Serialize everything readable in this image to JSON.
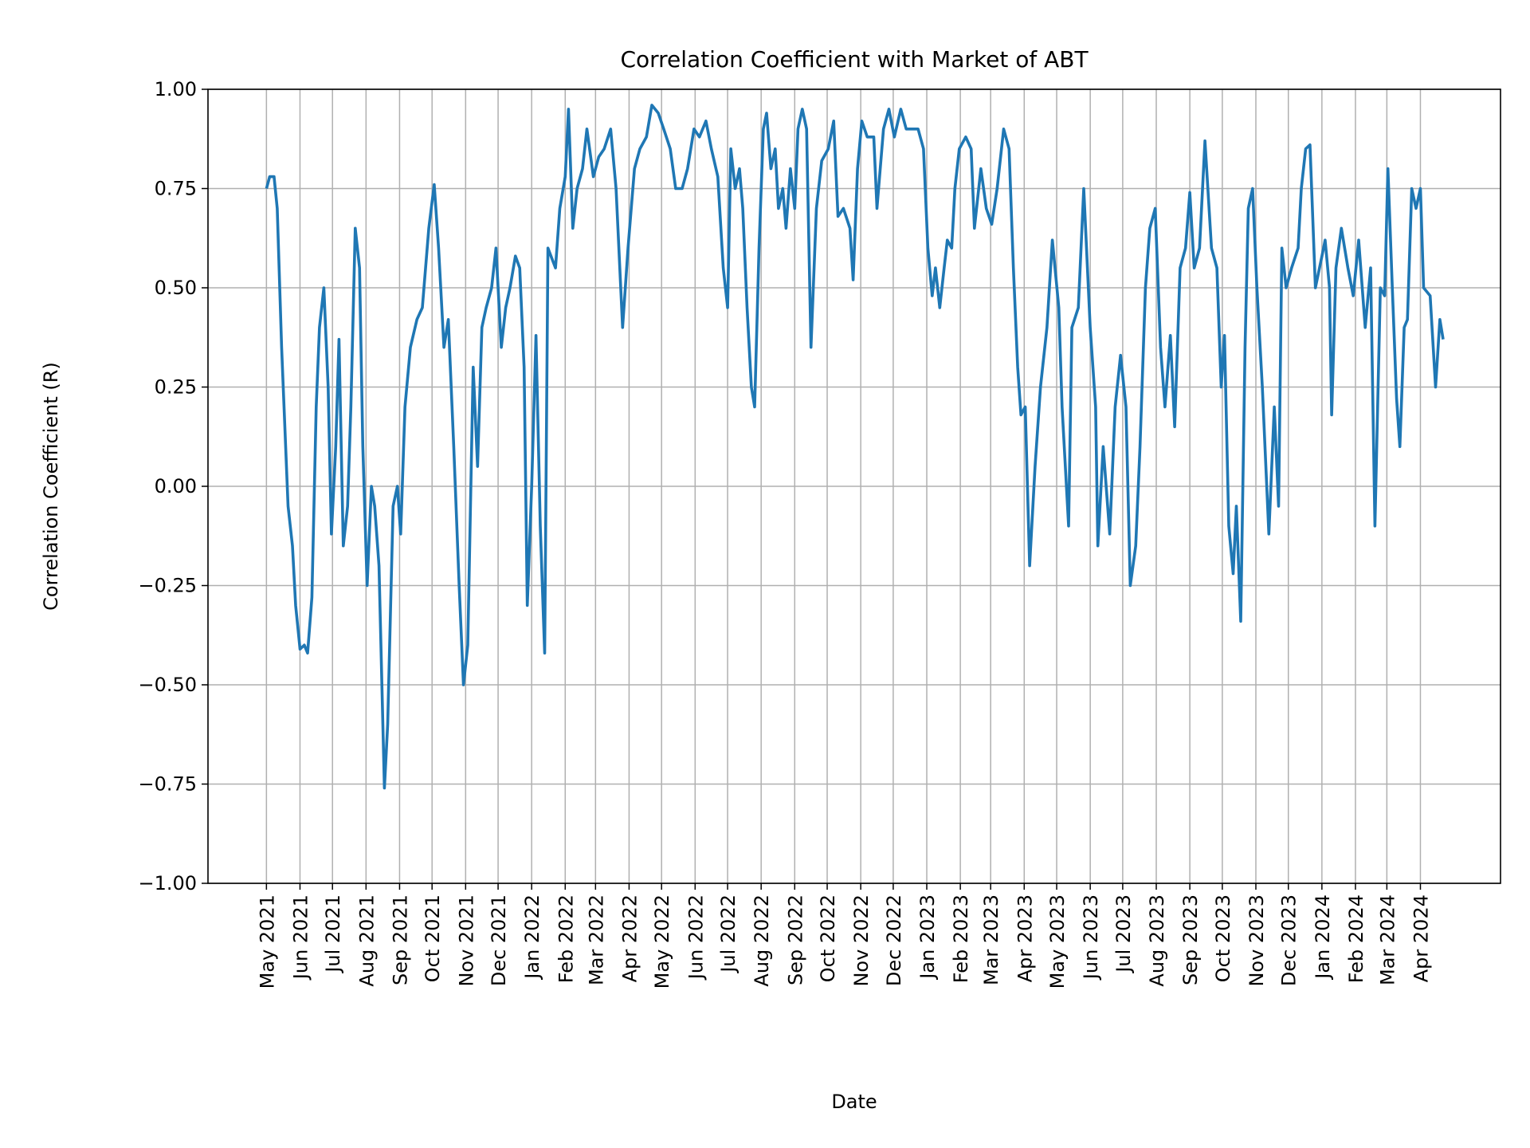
{
  "chart_data": {
    "type": "line",
    "title": "Correlation Coefficient with Market of ABT",
    "xlabel": "Date",
    "ylabel": "Correlation Coefficient (R)",
    "ylim": [
      -1.0,
      1.0
    ],
    "xlim": [
      "2021-03-08",
      "2024-06-14"
    ],
    "grid": true,
    "line_color": "#1f77b4",
    "grid_color": "#b0b0b0",
    "yticks": [
      -1.0,
      -0.75,
      -0.5,
      -0.25,
      0.0,
      0.25,
      0.5,
      0.75,
      1.0
    ],
    "ytick_labels": [
      "−1.00",
      "−0.75",
      "−0.50",
      "−0.25",
      "0.00",
      "0.25",
      "0.50",
      "0.75",
      "1.00"
    ],
    "xtick_labels": [
      "May 2021",
      "Jun 2021",
      "Jul 2021",
      "Aug 2021",
      "Sep 2021",
      "Oct 2021",
      "Nov 2021",
      "Dec 2021",
      "Jan 2022",
      "Feb 2022",
      "Mar 2022",
      "Apr 2022",
      "May 2022",
      "Jun 2022",
      "Jul 2022",
      "Aug 2022",
      "Sep 2022",
      "Oct 2022",
      "Nov 2022",
      "Dec 2022",
      "Jan 2023",
      "Feb 2023",
      "Mar 2023",
      "Apr 2023",
      "May 2023",
      "Jun 2023",
      "Jul 2023",
      "Aug 2023",
      "Sep 2023",
      "Oct 2023",
      "Nov 2023",
      "Dec 2023",
      "Jan 2024",
      "Feb 2024",
      "Mar 2024",
      "Apr 2024"
    ],
    "series": [
      {
        "x": [
          "2021-05-01",
          "2021-05-04",
          "2021-05-08",
          "2021-05-11",
          "2021-05-15",
          "2021-05-21",
          "2021-05-25",
          "2021-05-28",
          "2021-06-01",
          "2021-06-05",
          "2021-06-08",
          "2021-06-12",
          "2021-06-16",
          "2021-06-19",
          "2021-06-23",
          "2021-06-27",
          "2021-06-30",
          "2021-07-04",
          "2021-07-07",
          "2021-07-11",
          "2021-07-15",
          "2021-07-18",
          "2021-07-22",
          "2021-07-26",
          "2021-07-29",
          "2021-08-02",
          "2021-08-06",
          "2021-08-09",
          "2021-08-13",
          "2021-08-18",
          "2021-08-21",
          "2021-08-26",
          "2021-08-30",
          "2021-09-02",
          "2021-09-06",
          "2021-09-11",
          "2021-09-17",
          "2021-09-22",
          "2021-09-28",
          "2021-10-03",
          "2021-10-07",
          "2021-10-12",
          "2021-10-16",
          "2021-10-21",
          "2021-10-26",
          "2021-10-30",
          "2021-11-03",
          "2021-11-08",
          "2021-11-12",
          "2021-11-16",
          "2021-11-20",
          "2021-11-25",
          "2021-11-29",
          "2021-12-04",
          "2021-12-08",
          "2021-12-12",
          "2021-12-17",
          "2021-12-21",
          "2021-12-25",
          "2021-12-28",
          "2022-01-01",
          "2022-01-05",
          "2022-01-09",
          "2022-01-13",
          "2022-01-16",
          "2022-01-23",
          "2022-01-27",
          "2022-02-01",
          "2022-02-04",
          "2022-02-08",
          "2022-02-12",
          "2022-02-17",
          "2022-02-21",
          "2022-02-27",
          "2022-03-04",
          "2022-03-09",
          "2022-03-15",
          "2022-03-20",
          "2022-03-26",
          "2022-03-31",
          "2022-04-06",
          "2022-04-11",
          "2022-04-17",
          "2022-04-22",
          "2022-04-28",
          "2022-05-03",
          "2022-05-09",
          "2022-05-14",
          "2022-05-20",
          "2022-05-25",
          "2022-05-31",
          "2022-06-05",
          "2022-06-11",
          "2022-06-16",
          "2022-06-22",
          "2022-06-27",
          "2022-07-01",
          "2022-07-04",
          "2022-07-08",
          "2022-07-12",
          "2022-07-15",
          "2022-07-19",
          "2022-07-23",
          "2022-07-26",
          "2022-07-30",
          "2022-08-03",
          "2022-08-06",
          "2022-08-10",
          "2022-08-14",
          "2022-08-17",
          "2022-08-21",
          "2022-08-24",
          "2022-08-28",
          "2022-09-01",
          "2022-09-04",
          "2022-09-08",
          "2022-09-12",
          "2022-09-16",
          "2022-09-21",
          "2022-09-26",
          "2022-10-02",
          "2022-10-07",
          "2022-10-11",
          "2022-10-16",
          "2022-10-22",
          "2022-10-25",
          "2022-10-29",
          "2022-11-02",
          "2022-11-07",
          "2022-11-13",
          "2022-11-16",
          "2022-11-22",
          "2022-11-27",
          "2022-12-02",
          "2022-12-08",
          "2022-12-13",
          "2022-12-19",
          "2022-12-24",
          "2022-12-29",
          "2023-01-02",
          "2023-01-06",
          "2023-01-09",
          "2023-01-13",
          "2023-01-17",
          "2023-01-20",
          "2023-01-24",
          "2023-01-27",
          "2023-01-31",
          "2023-02-06",
          "2023-02-11",
          "2023-02-14",
          "2023-02-20",
          "2023-02-25",
          "2023-03-02",
          "2023-03-07",
          "2023-03-13",
          "2023-03-18",
          "2023-03-22",
          "2023-03-26",
          "2023-03-29",
          "2023-04-02",
          "2023-04-06",
          "2023-04-11",
          "2023-04-16",
          "2023-04-22",
          "2023-04-27",
          "2023-05-03",
          "2023-05-06",
          "2023-05-12",
          "2023-05-15",
          "2023-05-21",
          "2023-05-26",
          "2023-06-01",
          "2023-06-06",
          "2023-06-08",
          "2023-06-13",
          "2023-06-19",
          "2023-06-24",
          "2023-06-29",
          "2023-07-04",
          "2023-07-08",
          "2023-07-13",
          "2023-07-17",
          "2023-07-22",
          "2023-07-26",
          "2023-07-31",
          "2023-08-05",
          "2023-08-09",
          "2023-08-14",
          "2023-08-18",
          "2023-08-23",
          "2023-08-28",
          "2023-09-01",
          "2023-09-05",
          "2023-09-10",
          "2023-09-15",
          "2023-09-21",
          "2023-09-26",
          "2023-09-30",
          "2023-10-03",
          "2023-10-07",
          "2023-10-11",
          "2023-10-14",
          "2023-10-18",
          "2023-10-22",
          "2023-10-25",
          "2023-10-29",
          "2023-11-02",
          "2023-11-07",
          "2023-11-13",
          "2023-11-18",
          "2023-11-22",
          "2023-11-25",
          "2023-11-29",
          "2023-12-04",
          "2023-12-10",
          "2023-12-13",
          "2023-12-17",
          "2023-12-21",
          "2023-12-26",
          "2024-01-01",
          "2024-01-04",
          "2024-01-08",
          "2024-01-10",
          "2024-01-14",
          "2024-01-19",
          "2024-01-25",
          "2024-01-30",
          "2024-02-04",
          "2024-02-10",
          "2024-02-15",
          "2024-02-19",
          "2024-02-24",
          "2024-02-28",
          "2024-03-02",
          "2024-03-06",
          "2024-03-10",
          "2024-03-13",
          "2024-03-17",
          "2024-03-20",
          "2024-03-24",
          "2024-03-28",
          "2024-04-01",
          "2024-04-04",
          "2024-04-10",
          "2024-04-15",
          "2024-04-19",
          "2024-04-22"
        ],
        "y": [
          0.75,
          0.78,
          0.78,
          0.7,
          0.35,
          -0.05,
          -0.15,
          -0.3,
          -0.41,
          -0.4,
          -0.42,
          -0.28,
          0.2,
          0.4,
          0.5,
          0.25,
          -0.12,
          0.1,
          0.37,
          -0.15,
          -0.05,
          0.2,
          0.65,
          0.55,
          0.1,
          -0.25,
          0.0,
          -0.05,
          -0.2,
          -0.76,
          -0.6,
          -0.05,
          0.0,
          -0.12,
          0.2,
          0.35,
          0.42,
          0.45,
          0.65,
          0.76,
          0.6,
          0.35,
          0.42,
          0.1,
          -0.25,
          -0.5,
          -0.4,
          0.3,
          0.05,
          0.4,
          0.45,
          0.5,
          0.6,
          0.35,
          0.45,
          0.5,
          0.58,
          0.55,
          0.3,
          -0.3,
          0.0,
          0.38,
          -0.1,
          -0.42,
          0.6,
          0.55,
          0.7,
          0.78,
          0.95,
          0.65,
          0.75,
          0.8,
          0.9,
          0.78,
          0.83,
          0.85,
          0.9,
          0.75,
          0.4,
          0.6,
          0.8,
          0.85,
          0.88,
          0.96,
          0.94,
          0.9,
          0.85,
          0.75,
          0.75,
          0.8,
          0.9,
          0.88,
          0.92,
          0.85,
          0.78,
          0.55,
          0.45,
          0.85,
          0.75,
          0.8,
          0.7,
          0.45,
          0.25,
          0.2,
          0.6,
          0.9,
          0.94,
          0.8,
          0.85,
          0.7,
          0.75,
          0.65,
          0.8,
          0.7,
          0.9,
          0.95,
          0.9,
          0.35,
          0.7,
          0.82,
          0.85,
          0.92,
          0.68,
          0.7,
          0.65,
          0.52,
          0.8,
          0.92,
          0.88,
          0.88,
          0.7,
          0.9,
          0.95,
          0.88,
          0.95,
          0.9,
          0.9,
          0.9,
          0.85,
          0.6,
          0.48,
          0.55,
          0.45,
          0.55,
          0.62,
          0.6,
          0.75,
          0.85,
          0.88,
          0.85,
          0.65,
          0.8,
          0.7,
          0.66,
          0.75,
          0.9,
          0.85,
          0.55,
          0.3,
          0.18,
          0.2,
          -0.2,
          0.05,
          0.25,
          0.4,
          0.62,
          0.45,
          0.2,
          -0.1,
          0.4,
          0.45,
          0.75,
          0.4,
          0.2,
          -0.15,
          0.1,
          -0.12,
          0.2,
          0.33,
          0.2,
          -0.25,
          -0.15,
          0.1,
          0.5,
          0.65,
          0.7,
          0.35,
          0.2,
          0.38,
          0.15,
          0.55,
          0.6,
          0.74,
          0.55,
          0.6,
          0.87,
          0.6,
          0.55,
          0.25,
          0.38,
          -0.1,
          -0.22,
          -0.05,
          -0.34,
          0.35,
          0.7,
          0.75,
          0.5,
          0.25,
          -0.12,
          0.2,
          -0.05,
          0.6,
          0.5,
          0.55,
          0.6,
          0.75,
          0.85,
          0.86,
          0.5,
          0.58,
          0.62,
          0.5,
          0.18,
          0.55,
          0.65,
          0.55,
          0.48,
          0.62,
          0.4,
          0.55,
          -0.1,
          0.5,
          0.48,
          0.8,
          0.5,
          0.22,
          0.1,
          0.4,
          0.42,
          0.75,
          0.7,
          0.75,
          0.5,
          0.48,
          0.25,
          0.42,
          0.37
        ]
      }
    ]
  }
}
